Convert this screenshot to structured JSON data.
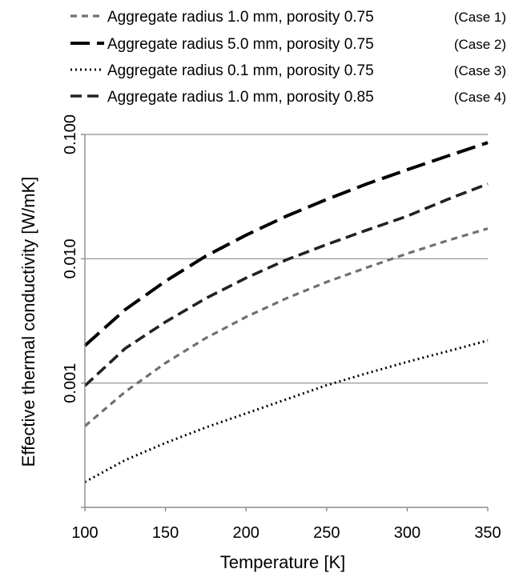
{
  "chart_data": {
    "type": "line",
    "xlabel": "Temperature [K]",
    "ylabel": "Effective thermal conductivity [W/mK]",
    "xlim": [
      100,
      350
    ],
    "ylim": [
      0.0001,
      0.1
    ],
    "yscale": "log",
    "x_ticks": [
      "100",
      "150",
      "200",
      "250",
      "300",
      "350"
    ],
    "y_ticks": [
      "0.001",
      "0.010",
      "0.100"
    ],
    "grid": "horizontal at decades",
    "legend_position": "top",
    "x": [
      100,
      125,
      150,
      175,
      200,
      225,
      250,
      275,
      300,
      325,
      350
    ],
    "series": [
      {
        "name": "Aggregate radius 1.0 mm, porosity 0.75",
        "case": "(Case 1)",
        "color": "#707070",
        "dash": "short-dash",
        "values": [
          0.00045,
          0.00085,
          0.00145,
          0.0023,
          0.0034,
          0.0048,
          0.0065,
          0.0085,
          0.011,
          0.014,
          0.0175
        ]
      },
      {
        "name": "Aggregate radius 5.0 mm, porosity 0.75",
        "case": "(Case 2)",
        "color": "#000000",
        "dash": "long-dash",
        "values": [
          0.002,
          0.0039,
          0.0066,
          0.0105,
          0.0155,
          0.022,
          0.03,
          0.04,
          0.052,
          0.067,
          0.086
        ]
      },
      {
        "name": "Aggregate radius 0.1 mm, porosity 0.75",
        "case": "(Case 3)",
        "color": "#000000",
        "dash": "dotted",
        "values": [
          0.00016,
          0.00024,
          0.00033,
          0.00044,
          0.00057,
          0.00074,
          0.00096,
          0.0012,
          0.00148,
          0.0018,
          0.0022
        ]
      },
      {
        "name": "Aggregate radius 1.0 mm, porosity 0.85",
        "case": "(Case 4)",
        "color": "#222222",
        "dash": "dash",
        "values": [
          0.00095,
          0.0019,
          0.0031,
          0.0048,
          0.007,
          0.0098,
          0.013,
          0.017,
          0.022,
          0.03,
          0.04
        ]
      }
    ]
  }
}
